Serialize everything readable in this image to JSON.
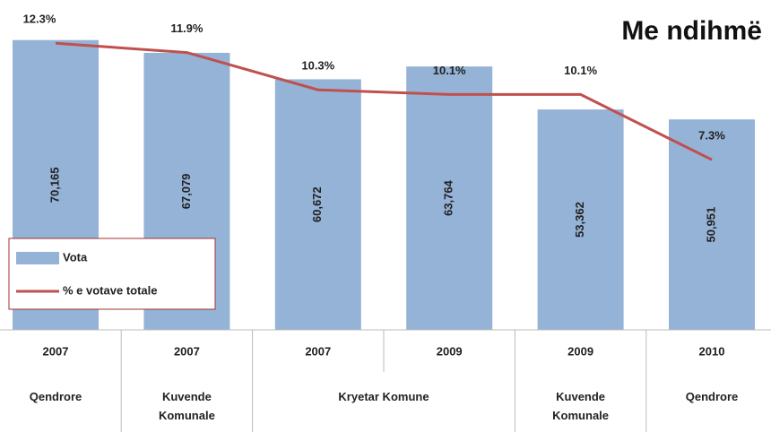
{
  "chart_data": {
    "type": "bar_line",
    "title": "Me ndihmë",
    "categories": [
      "2007",
      "2007",
      "2007",
      "2009",
      "2009",
      "2010"
    ],
    "groups": [
      "Qendrore",
      "Kuvende Komunale",
      "Kryetar Komune",
      null,
      "Kuvende Komunale",
      "Qendrore"
    ],
    "series": [
      {
        "name": "Vota",
        "type": "bar",
        "color": "#95b3d7",
        "values": [
          70165,
          67079,
          60672,
          63764,
          53362,
          50951
        ],
        "value_labels": [
          "70,165",
          "67,079",
          "60,672",
          "63,764",
          "53,362",
          "50,951"
        ]
      },
      {
        "name": "% e votave totale",
        "type": "line",
        "axis": "y2",
        "color": "#c0504d",
        "values": [
          12.3,
          11.9,
          10.3,
          10.1,
          10.1,
          7.3
        ],
        "value_labels": [
          "12.3%",
          "11.9%",
          "10.3%",
          "10.1%",
          "10.1%",
          "7.3%"
        ]
      }
    ],
    "ylim": [
      0,
      79000
    ],
    "y2lim": [
      0,
      14
    ],
    "legend": "lower left"
  }
}
